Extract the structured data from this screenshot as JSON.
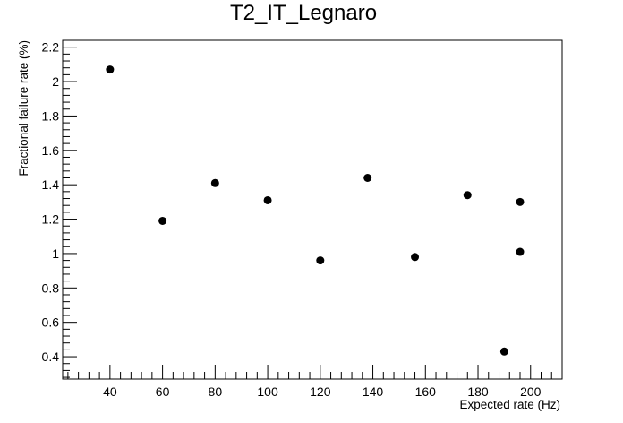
{
  "chart_data": {
    "type": "scatter",
    "title": "T2_IT_Legnaro",
    "xlabel": "Expected rate (Hz)",
    "ylabel": "Fractional failure rate (%)",
    "xlim": [
      22,
      212
    ],
    "ylim": [
      0.27,
      2.24
    ],
    "x_major_ticks": [
      40,
      60,
      80,
      100,
      120,
      140,
      160,
      180,
      200
    ],
    "y_major_ticks": [
      0.4,
      0.6,
      0.8,
      1,
      1.2,
      1.4,
      1.6,
      1.8,
      2,
      2.2
    ],
    "x_tick_labels": [
      "40",
      "60",
      "80",
      "100",
      "120",
      "140",
      "160",
      "180",
      "200"
    ],
    "y_tick_labels": [
      "0.4",
      "0.6",
      "0.8",
      "1",
      "1.2",
      "1.4",
      "1.6",
      "1.8",
      "2",
      "2.2"
    ],
    "grid": false,
    "marker_color": "#000000",
    "points": [
      {
        "x": 40,
        "y": 2.07
      },
      {
        "x": 60,
        "y": 1.19
      },
      {
        "x": 80,
        "y": 1.41
      },
      {
        "x": 100,
        "y": 1.31
      },
      {
        "x": 120,
        "y": 0.96
      },
      {
        "x": 138,
        "y": 1.44
      },
      {
        "x": 156,
        "y": 0.98
      },
      {
        "x": 176,
        "y": 1.34
      },
      {
        "x": 190,
        "y": 0.43
      },
      {
        "x": 196,
        "y": 1.01
      },
      {
        "x": 196,
        "y": 1.3
      }
    ]
  }
}
